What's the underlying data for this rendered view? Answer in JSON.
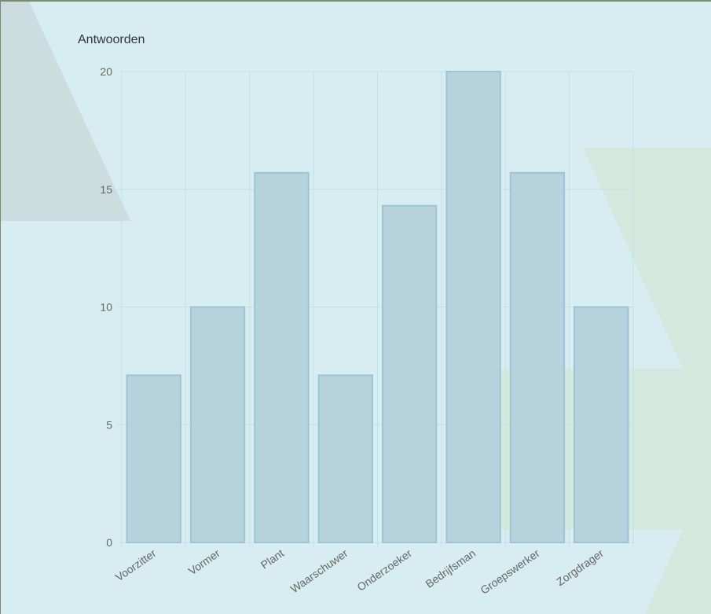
{
  "chart_data": {
    "type": "bar",
    "title": "Antwoorden",
    "categories": [
      "Voorzitter",
      "Vormer",
      "Plant",
      "Waarschuwer",
      "Onderzoeker",
      "Bedrijfsman",
      "Groepswerker",
      "Zorgdrager"
    ],
    "values": [
      7.1,
      10,
      15.7,
      7.1,
      14.3,
      20,
      15.7,
      10
    ],
    "yticks": [
      0,
      5,
      10,
      15,
      20
    ],
    "ylim": [
      0,
      20
    ],
    "grid": true,
    "colors": {
      "bar_fill": "#b6d3dd",
      "bar_stroke": "#9cc4d3",
      "grid": "#c6dfe4",
      "background": "#d8edf1"
    }
  }
}
